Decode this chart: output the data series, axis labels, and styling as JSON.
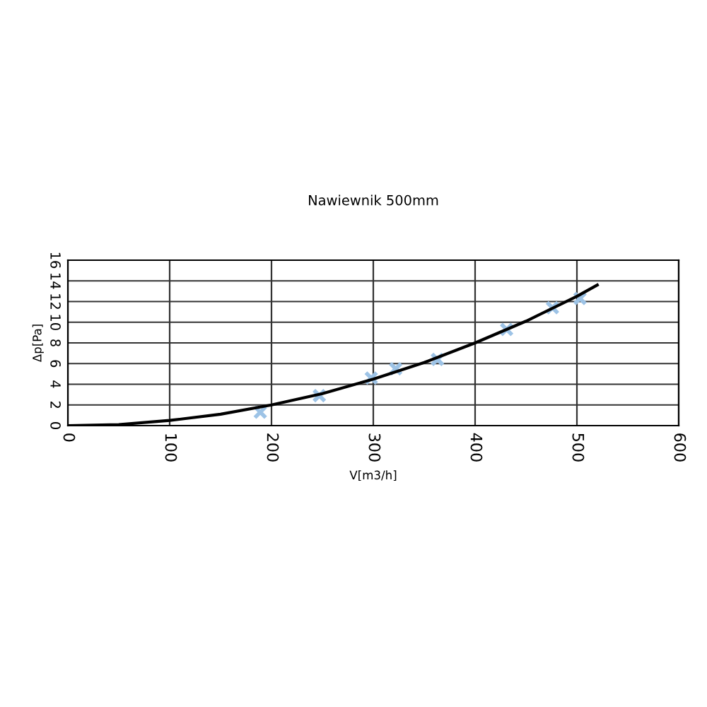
{
  "chart_data": {
    "type": "line",
    "title": "Nawiewnik 500mm",
    "xlabel": "V[m3/h]",
    "ylabel": "Δp[Pa]",
    "xlim": [
      0,
      600
    ],
    "xticks": [
      0,
      100,
      200,
      300,
      400,
      500,
      600
    ],
    "ylim": [
      0,
      16
    ],
    "yticks": [
      0,
      2,
      4,
      6,
      8,
      10,
      12,
      14,
      16
    ],
    "grid": true,
    "series": [
      {
        "color": "#000000",
        "marker": "none",
        "x": [
          0,
          50,
          100,
          150,
          200,
          250,
          300,
          350,
          400,
          450,
          500,
          520
        ],
        "values": [
          0,
          0.1,
          0.5,
          1.1,
          2,
          3.1,
          4.5,
          6.1,
          8,
          10.1,
          12.5,
          13.6
        ]
      },
      {
        "type": "scatter",
        "color": "#9dc3e6",
        "marker": "cross",
        "x": [
          189,
          247,
          298,
          322,
          363,
          431,
          476,
          503
        ],
        "values": [
          1.3,
          2.9,
          4.6,
          5.5,
          6.4,
          9.3,
          11.4,
          12.3
        ]
      }
    ]
  }
}
